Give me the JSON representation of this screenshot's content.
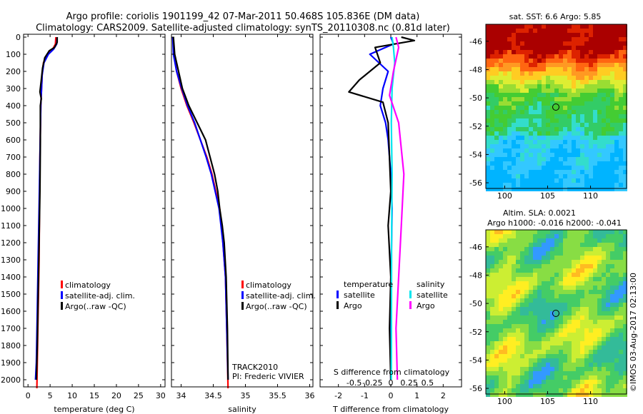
{
  "title_line1": "Argo profile: coriolis 1901199_42 07-Mar-2011 50.468S 105.836E (DM data)",
  "title_line2": "Climatology: CARS2009. Satellite-adjusted climatology: synTS_20110308.nc (0.81d later)",
  "colors": {
    "climatology": "#ff0000",
    "satellite": "#0000ff",
    "argo": "#000000",
    "sat_salinity": "#00e5ee",
    "argo_salinity": "#ff00ff"
  },
  "chart_data": [
    {
      "type": "line",
      "xlabel": "temperature (deg C)",
      "ylabel": "",
      "xlim": [
        -1,
        31
      ],
      "ylim": [
        2050,
        0
      ],
      "x_ticks": [
        "0",
        "5",
        "10",
        "15",
        "20",
        "25",
        "30"
      ],
      "y_ticks": [
        "0",
        "100",
        "200",
        "300",
        "400",
        "500",
        "600",
        "700",
        "800",
        "900",
        "1000",
        "1100",
        "1200",
        "1300",
        "1400",
        "1500",
        "1600",
        "1700",
        "1800",
        "1900",
        "2000"
      ],
      "legend": [
        "climatology",
        "satellite-adj. clim.",
        "Argo(..raw -QC)"
      ],
      "legend_position": "lower-right",
      "series": [
        {
          "name": "climatology",
          "color": "red",
          "points": [
            [
              6.3,
              0
            ],
            [
              6.2,
              40
            ],
            [
              5.6,
              70
            ],
            [
              4.5,
              100
            ],
            [
              3.5,
              150
            ],
            [
              3.2,
              220
            ],
            [
              2.9,
              400
            ],
            [
              2.7,
              700
            ],
            [
              2.6,
              1000
            ],
            [
              2.5,
              1300
            ],
            [
              2.3,
              1600
            ],
            [
              2.1,
              1900
            ],
            [
              2.0,
              2050
            ]
          ]
        },
        {
          "name": "satellite-adj. clim.",
          "color": "blue",
          "points": [
            [
              6.6,
              0
            ],
            [
              6.5,
              40
            ],
            [
              5.8,
              70
            ],
            [
              4.6,
              100
            ],
            [
              3.6,
              150
            ],
            [
              3.2,
              220
            ],
            [
              2.9,
              400
            ],
            [
              2.7,
              700
            ],
            [
              2.5,
              1000
            ],
            [
              2.3,
              1300
            ],
            [
              2.1,
              1600
            ],
            [
              1.9,
              1900
            ],
            [
              1.7,
              2000
            ]
          ]
        },
        {
          "name": "Argo(..raw -QC)",
          "color": "black",
          "points": [
            [
              6.6,
              0
            ],
            [
              6.6,
              30
            ],
            [
              6.0,
              60
            ],
            [
              4.8,
              80
            ],
            [
              3.8,
              120
            ],
            [
              3.3,
              180
            ],
            [
              3.0,
              250
            ],
            [
              2.7,
              320
            ],
            [
              3.0,
              360
            ],
            [
              2.8,
              400
            ],
            [
              2.8,
              600
            ],
            [
              2.7,
              900
            ],
            [
              2.5,
              1200
            ],
            [
              2.3,
              1500
            ],
            [
              2.1,
              1800
            ],
            [
              1.9,
              2000
            ]
          ]
        }
      ]
    },
    {
      "type": "line",
      "xlabel": "salinity",
      "xlim": [
        33.85,
        36.05
      ],
      "ylim": [
        2050,
        0
      ],
      "x_ticks": [
        "34",
        "34.5",
        "35",
        "35.5",
        "36"
      ],
      "legend": [
        "climatology",
        "satellite-adj. clim.",
        "Argo(..raw -QC)"
      ],
      "annotation": [
        "TRACK2010",
        "PI: Frederic VIVIER"
      ],
      "series": [
        {
          "name": "climatology",
          "color": "red",
          "points": [
            [
              33.87,
              0
            ],
            [
              33.89,
              100
            ],
            [
              33.93,
              200
            ],
            [
              34.0,
              300
            ],
            [
              34.09,
              400
            ],
            [
              34.2,
              500
            ],
            [
              34.3,
              600
            ],
            [
              34.4,
              700
            ],
            [
              34.48,
              800
            ],
            [
              34.54,
              900
            ],
            [
              34.6,
              1000
            ],
            [
              34.65,
              1200
            ],
            [
              34.69,
              1400
            ],
            [
              34.71,
              1700
            ],
            [
              34.73,
              2050
            ]
          ]
        },
        {
          "name": "satellite-adj. clim.",
          "color": "blue",
          "points": [
            [
              33.87,
              0
            ],
            [
              33.88,
              100
            ],
            [
              33.93,
              200
            ],
            [
              34.01,
              300
            ],
            [
              34.1,
              400
            ],
            [
              34.21,
              500
            ],
            [
              34.3,
              600
            ],
            [
              34.39,
              700
            ],
            [
              34.47,
              800
            ],
            [
              34.53,
              900
            ],
            [
              34.59,
              1000
            ],
            [
              34.65,
              1200
            ],
            [
              34.69,
              1400
            ],
            [
              34.71,
              1700
            ],
            [
              34.73,
              2000
            ]
          ]
        },
        {
          "name": "Argo(..raw -QC)",
          "color": "black",
          "points": [
            [
              33.88,
              0
            ],
            [
              33.9,
              100
            ],
            [
              33.96,
              200
            ],
            [
              34.02,
              300
            ],
            [
              34.12,
              400
            ],
            [
              34.25,
              500
            ],
            [
              34.38,
              600
            ],
            [
              34.45,
              700
            ],
            [
              34.52,
              800
            ],
            [
              34.57,
              900
            ],
            [
              34.6,
              1000
            ],
            [
              34.64,
              1100
            ],
            [
              34.67,
              1200
            ],
            [
              34.7,
              1400
            ],
            [
              34.72,
              1700
            ],
            [
              34.73,
              2000
            ]
          ]
        }
      ]
    },
    {
      "type": "line",
      "xlabel": "T difference from climatology",
      "xlabel_top": "S difference from climatology",
      "xlim": [
        -2.7,
        2.7
      ],
      "ylim": [
        2050,
        0
      ],
      "x_ticks": [
        "-2",
        "-1",
        "0",
        "1",
        "2"
      ],
      "s_ticks": [
        "-0.5",
        "-0.25",
        "0",
        "0.25",
        "0.5"
      ],
      "legend_titles": [
        "temperature",
        "salinity"
      ],
      "legend": [
        "satellite",
        "Argo",
        "satellite",
        "Argo"
      ],
      "series": [
        {
          "name": "temperature satellite",
          "color": "blue",
          "points": [
            [
              0,
              0
            ],
            [
              0.1,
              40
            ],
            [
              -0.8,
              100
            ],
            [
              -0.1,
              200
            ],
            [
              -0.3,
              300
            ],
            [
              -0.4,
              400
            ],
            [
              -0.2,
              500
            ],
            [
              -0.1,
              600
            ],
            [
              0,
              800
            ],
            [
              0.05,
              1000
            ],
            [
              0,
              1500
            ],
            [
              0,
              2000
            ]
          ]
        },
        {
          "name": "temperature Argo",
          "color": "black",
          "points": [
            [
              0.4,
              0
            ],
            [
              0.9,
              20
            ],
            [
              -0.6,
              60
            ],
            [
              -0.4,
              150
            ],
            [
              -1.2,
              250
            ],
            [
              -1.6,
              320
            ],
            [
              -0.3,
              380
            ],
            [
              -0.1,
              500
            ],
            [
              0,
              900
            ],
            [
              -0.1,
              1100
            ],
            [
              0,
              1400
            ],
            [
              -0.05,
              1700
            ],
            [
              0,
              2000
            ]
          ]
        },
        {
          "name": "salinity satellite",
          "color": "cyan",
          "points": [
            [
              0.05,
              0
            ],
            [
              0.1,
              60
            ],
            [
              0.15,
              150
            ],
            [
              0.05,
              300
            ],
            [
              0.02,
              500
            ],
            [
              0.05,
              800
            ],
            [
              0.03,
              1200
            ],
            [
              0.02,
              2000
            ]
          ]
        },
        {
          "name": "salinity Argo",
          "color": "magenta",
          "points": [
            [
              0.2,
              0
            ],
            [
              0.3,
              60
            ],
            [
              0.1,
              200
            ],
            [
              -0.05,
              340
            ],
            [
              0.3,
              500
            ],
            [
              0.5,
              800
            ],
            [
              0.4,
              1100
            ],
            [
              0.3,
              1400
            ],
            [
              0.2,
              1700
            ],
            [
              0.25,
              2000
            ]
          ]
        }
      ]
    },
    {
      "type": "heatmap",
      "title": "sat. SST: 6.6 Argo: 5.85",
      "x_ticks": [
        "100",
        "105",
        "110"
      ],
      "y_ticks": [
        "-46",
        "-48",
        "-50",
        "-52",
        "-54",
        "-56"
      ],
      "marker": {
        "lon": 105.8,
        "lat": -50.5
      }
    },
    {
      "type": "heatmap",
      "title": "Altim. SLA: 0.0021",
      "subtitle": "Argo h1000: -0.016 h2000: -0.041",
      "x_ticks": [
        "100",
        "105",
        "110"
      ],
      "y_ticks": [
        "-46",
        "-48",
        "-50",
        "-52",
        "-54",
        "-56"
      ],
      "marker": {
        "lon": 105.8,
        "lat": -50.5
      }
    }
  ],
  "credit": "©IMOS 03-Aug-2017 02:13:00"
}
